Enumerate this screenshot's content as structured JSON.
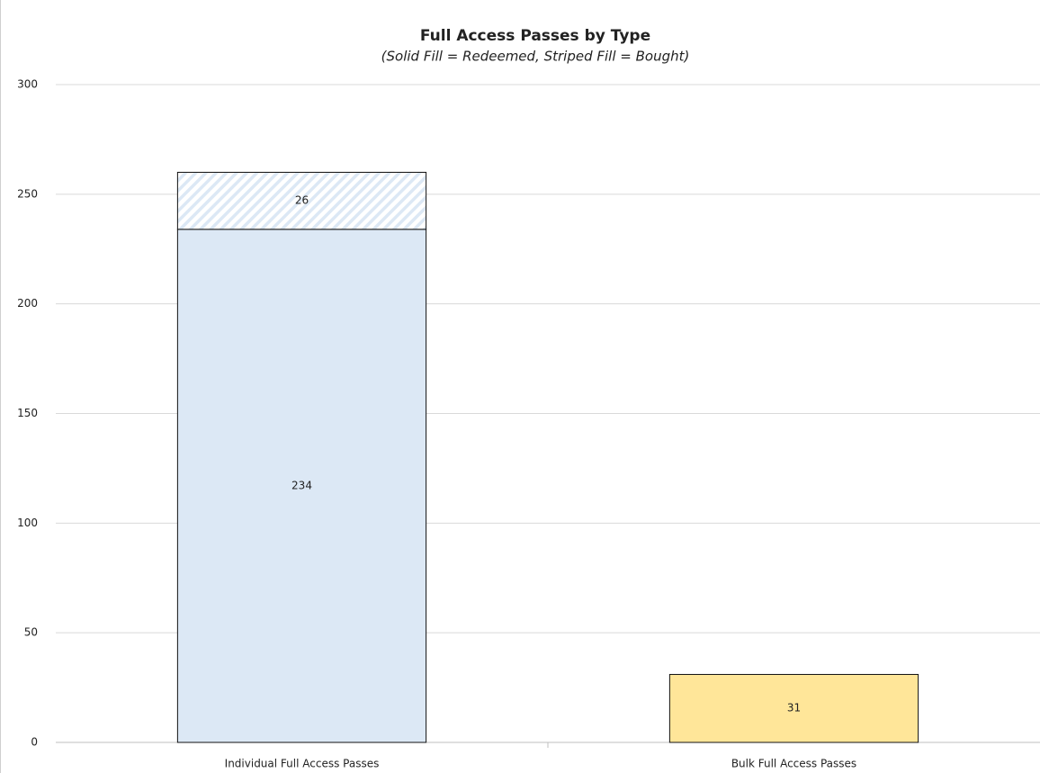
{
  "chart_data": {
    "type": "stacked_bar",
    "title": "Full Access Passes by Type",
    "subtitle": "(Solid Fill = Redeemed, Striped Fill = Bought)",
    "categories": [
      "Individual Full Access Passes",
      "Bulk Full Access Passes"
    ],
    "colors": [
      "#dce8f5",
      "#ffe699"
    ],
    "series": [
      {
        "fill": "solid",
        "values": [
          234,
          31
        ]
      },
      {
        "fill": "striped",
        "values": [
          26,
          null
        ]
      }
    ],
    "ylim": [
      0,
      300
    ],
    "yticks": [
      0,
      50,
      100,
      150,
      200,
      250,
      300
    ],
    "grid": true
  }
}
